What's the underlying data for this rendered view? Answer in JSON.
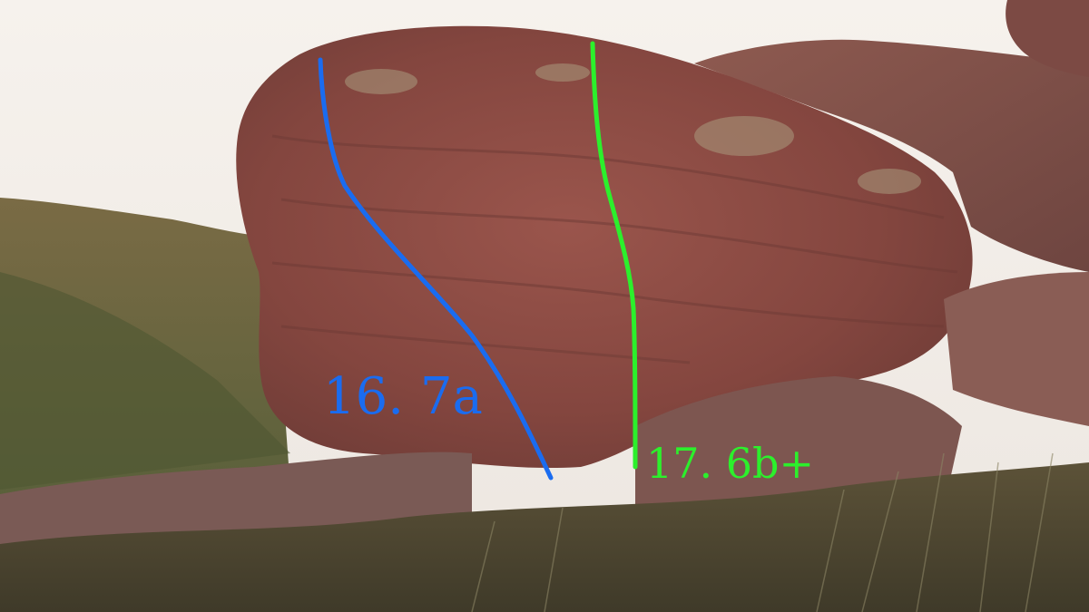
{
  "routes": [
    {
      "label": "16. 7a",
      "color": "#1a6cf0"
    },
    {
      "label": "17. 6b+",
      "color": "#2cf02c"
    }
  ],
  "scene": {
    "sky_color": "#f3efea",
    "rock_color": "#8c4a44",
    "hill_color": "#6b6b3e",
    "ground_color": "#4f4a33"
  }
}
